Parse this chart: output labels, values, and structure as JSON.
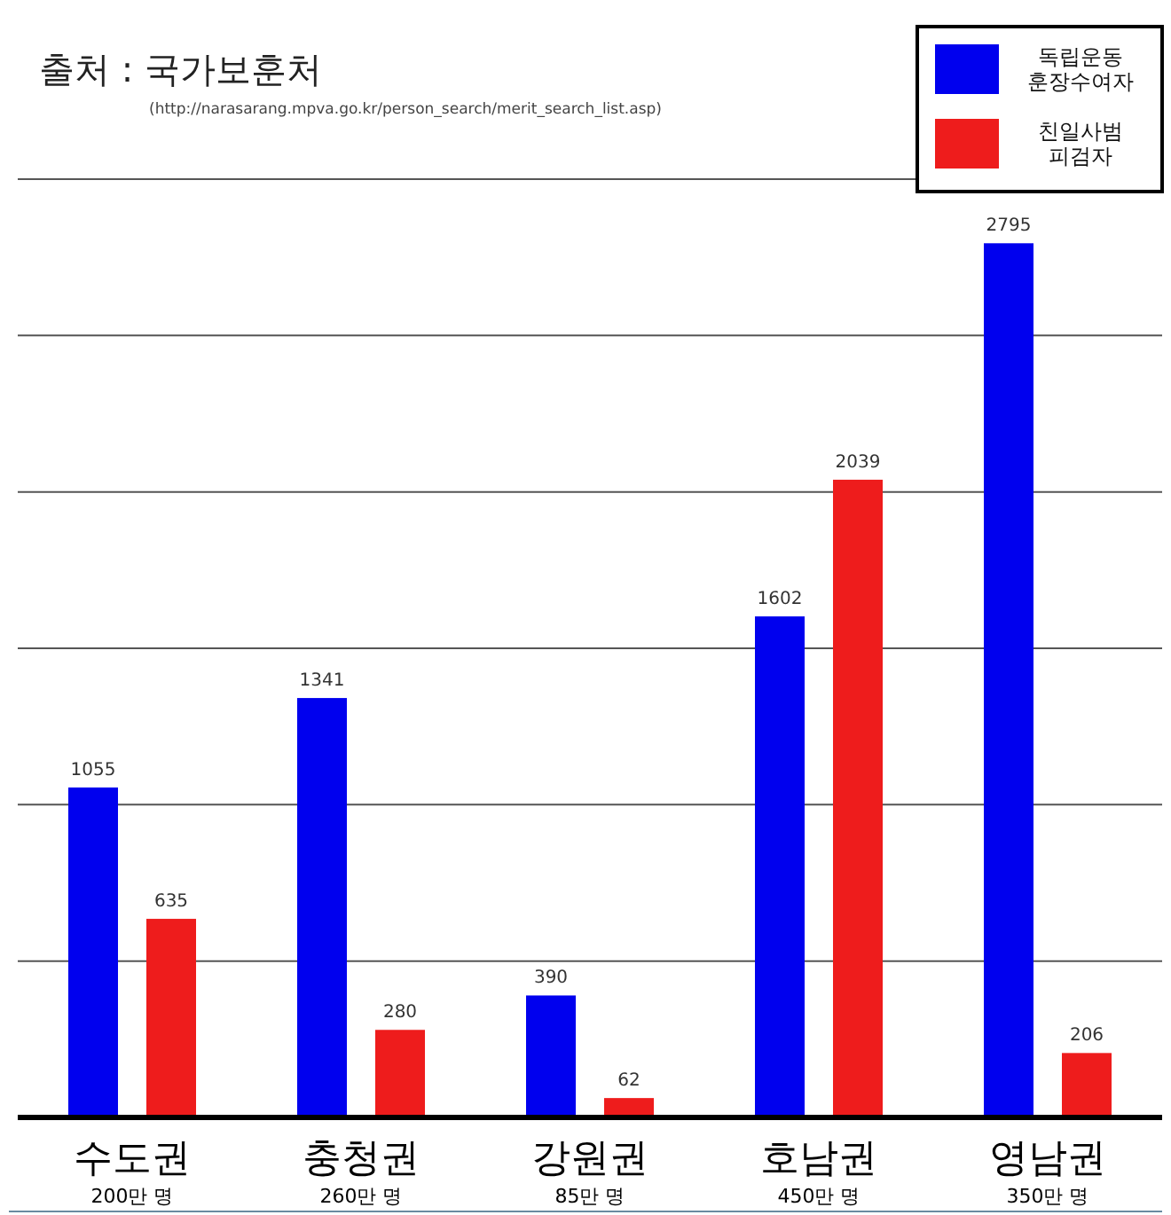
{
  "chart_data": {
    "type": "bar",
    "title": "출처 : 국가보훈처",
    "subtitle": "(http://narasarang.mpva.go.kr/person_search/merit_search_list.asp)",
    "categories": [
      "수도권",
      "충청권",
      "강원권",
      "호남권",
      "영남권"
    ],
    "annotations": [
      "200만 명",
      "260만 명",
      "85만 명",
      "450만 명",
      "350만 명"
    ],
    "series": [
      {
        "name": "독립운동 훈장수여자",
        "color": "#0000ee",
        "values": [
          1055,
          1341,
          390,
          1602,
          2795
        ]
      },
      {
        "name": "친일사범 피검자",
        "color": "#ee1c1c",
        "values": [
          635,
          280,
          62,
          2039,
          206
        ]
      }
    ],
    "ylim": [
      0,
      3000
    ],
    "yticks": [
      {
        "value": 0,
        "label": null
      },
      {
        "value": 500,
        "label": null
      },
      {
        "value": 1000,
        "label": null
      },
      {
        "value": 1500,
        "label": null
      },
      {
        "value": 2000,
        "label": null
      },
      {
        "value": 2500,
        "label": null
      },
      {
        "value": 3000,
        "label": null
      }
    ],
    "tick_labels": "x",
    "grid": "y",
    "legend": "top right",
    "data_labels": true
  }
}
